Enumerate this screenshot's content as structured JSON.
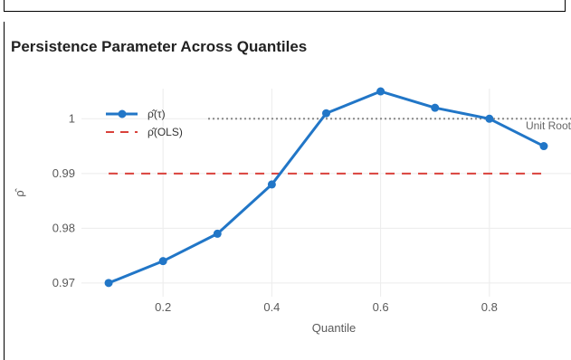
{
  "chart_data": {
    "type": "line",
    "title": "Persistence Parameter Across Quantiles",
    "xlabel": "Quantile",
    "ylabel": "ρ̂",
    "xlim": [
      0.05,
      0.95
    ],
    "ylim": [
      0.9675,
      1.0055
    ],
    "x_ticks": [
      0.2,
      0.4,
      0.6,
      0.8
    ],
    "x_tick_labels": [
      "0.2",
      "0.4",
      "0.6",
      "0.8"
    ],
    "y_ticks": [
      0.97,
      0.98,
      0.99,
      1
    ],
    "y_tick_labels": [
      "0.97",
      "0.98",
      "0.99",
      "1"
    ],
    "grid": true,
    "legend_position": "top-left",
    "series": [
      {
        "name": "ρ̂(τ)",
        "color": "#2176c7",
        "x": [
          0.1,
          0.2,
          0.3,
          0.4,
          0.5,
          0.6,
          0.7,
          0.8,
          0.9
        ],
        "y": [
          0.97,
          0.974,
          0.979,
          0.988,
          1.001,
          1.005,
          1.002,
          1.0,
          0.995
        ]
      }
    ],
    "reference_lines": [
      {
        "name": "ρ̂(OLS)",
        "value": 0.99,
        "color": "#d9413b",
        "style": "dashed"
      },
      {
        "name": "Unit Root",
        "value": 1.0,
        "color": "#888888",
        "style": "dotted",
        "annotation": "Unit Root"
      }
    ]
  }
}
